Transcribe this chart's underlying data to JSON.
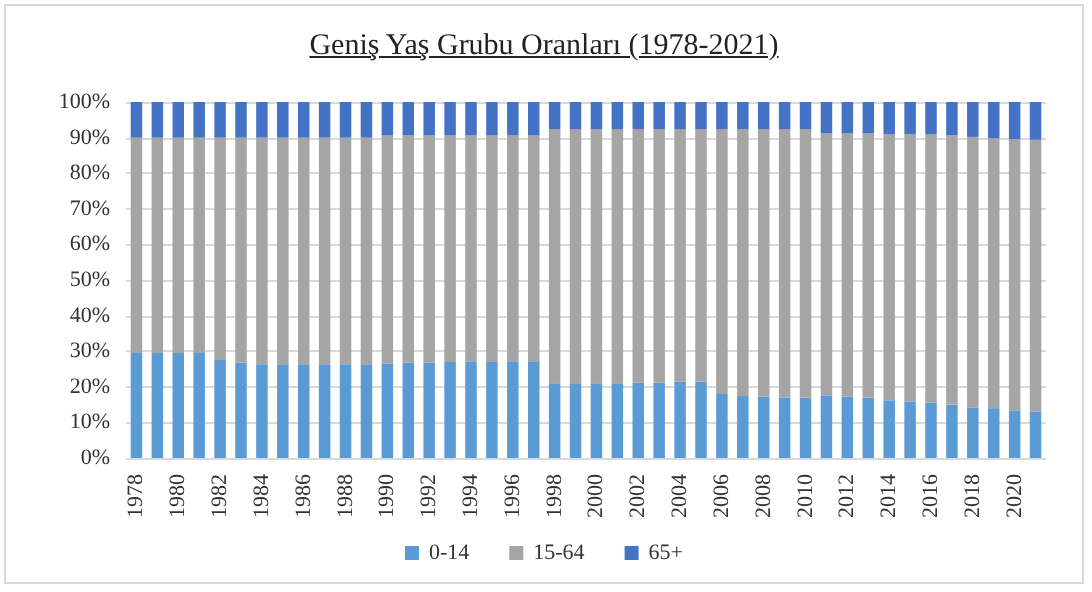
{
  "chart_data": {
    "type": "bar",
    "title": "Geniş Yaş Grubu Oranları (1978-2021)",
    "stacked": true,
    "categories": [
      "1978",
      null,
      "1980",
      null,
      "1982",
      null,
      "1984",
      null,
      "1986",
      null,
      "1988",
      null,
      "1990",
      null,
      "1992",
      null,
      "1994",
      null,
      "1996",
      null,
      "1998",
      null,
      "2000",
      null,
      "2002",
      null,
      "2004",
      null,
      "2006",
      null,
      "2008",
      null,
      "2010",
      null,
      "2012",
      null,
      "2014",
      null,
      "2016",
      null,
      "2018",
      null,
      "2020",
      null
    ],
    "series": [
      {
        "name": "0-14",
        "color": "#5b9bd5",
        "values": [
          29.5,
          29.5,
          29.5,
          29.5,
          27.5,
          26.8,
          26.3,
          26.3,
          26.3,
          26.3,
          26.3,
          26.3,
          26.5,
          26.8,
          26.8,
          27,
          27.2,
          27.2,
          27.2,
          27.2,
          21,
          21,
          21,
          21,
          21.2,
          21.2,
          21.4,
          21.4,
          18,
          17.4,
          17.2,
          17,
          17,
          17.6,
          17.2,
          17,
          16.2,
          15.8,
          15.6,
          15,
          14.2,
          14,
          13.4,
          13
        ]
      },
      {
        "name": "15-64",
        "color": "#a5a5a5",
        "values": [
          60.5,
          60.5,
          60.5,
          60.5,
          62.5,
          63.2,
          63.7,
          63.7,
          63.7,
          63.7,
          63.7,
          63.7,
          64.1,
          63.8,
          63.8,
          63.6,
          63.4,
          63.4,
          63.4,
          63.4,
          71.4,
          71.4,
          71.4,
          71.4,
          71.2,
          71.2,
          71,
          71,
          74.4,
          75,
          75.2,
          75.4,
          75.4,
          73.6,
          74,
          74.2,
          74.8,
          75.2,
          75.4,
          75.6,
          76,
          75.8,
          76.2,
          76.4
        ]
      },
      {
        "name": "65+",
        "color": "#4472c4",
        "values": [
          10,
          10,
          10,
          10,
          10,
          10,
          10,
          10,
          10,
          10,
          10,
          10,
          9.4,
          9.4,
          9.4,
          9.4,
          9.4,
          9.4,
          9.4,
          9.4,
          7.6,
          7.6,
          7.6,
          7.6,
          7.6,
          7.6,
          7.6,
          7.6,
          7.6,
          7.6,
          7.6,
          7.6,
          7.6,
          8.8,
          8.8,
          8.8,
          9,
          9,
          9,
          9.4,
          9.8,
          10.2,
          10.4,
          10.6
        ]
      }
    ],
    "ylim": [
      0,
      100
    ],
    "yticks": [
      {
        "value": 0,
        "label": "0%"
      },
      {
        "value": 10,
        "label": "10%"
      },
      {
        "value": 20,
        "label": "20%"
      },
      {
        "value": 30,
        "label": "30%"
      },
      {
        "value": 40,
        "label": "40%"
      },
      {
        "value": 50,
        "label": "50%"
      },
      {
        "value": 60,
        "label": "60%"
      },
      {
        "value": 70,
        "label": "70%"
      },
      {
        "value": 80,
        "label": "80%"
      },
      {
        "value": 90,
        "label": "90%"
      },
      {
        "value": 100,
        "label": "100%"
      }
    ],
    "grid": "y",
    "legend": "bottom"
  }
}
